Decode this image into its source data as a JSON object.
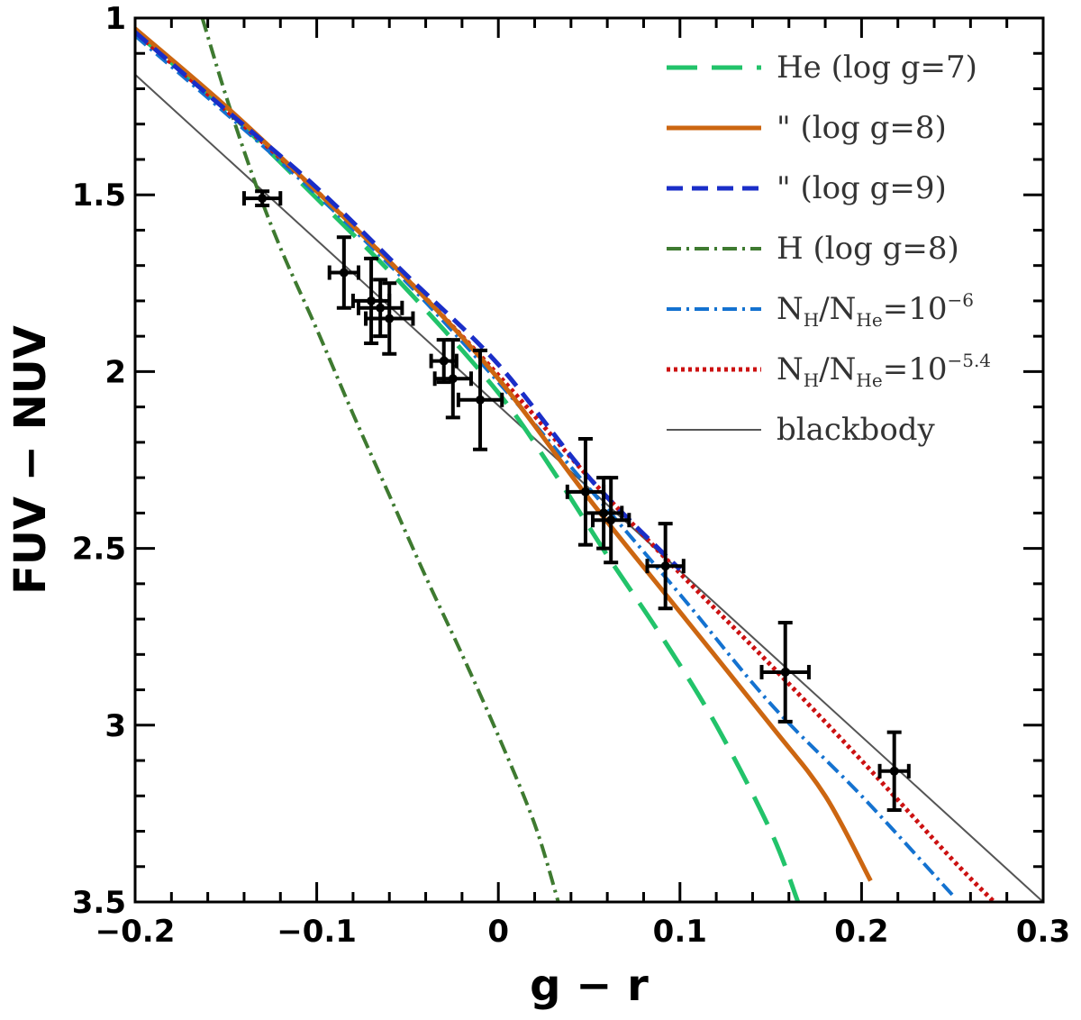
{
  "chart_data": {
    "type": "line",
    "xlabel": "g  −  r",
    "ylabel": "FUV  −  NUV",
    "xlim": [
      -0.2,
      0.3
    ],
    "ylim": [
      1.0,
      3.5
    ],
    "y_inverted": true,
    "x_ticks": [
      {
        "value": -0.2,
        "label": "−0.2"
      },
      {
        "value": -0.1,
        "label": "−0.1"
      },
      {
        "value": 0.0,
        "label": "0"
      },
      {
        "value": 0.1,
        "label": "0.1"
      },
      {
        "value": 0.2,
        "label": "0.2"
      },
      {
        "value": 0.3,
        "label": "0.3"
      }
    ],
    "y_ticks": [
      {
        "value": 1.0,
        "label": "1"
      },
      {
        "value": 1.5,
        "label": "1.5"
      },
      {
        "value": 2.0,
        "label": "2"
      },
      {
        "value": 2.5,
        "label": "2.5"
      },
      {
        "value": 3.0,
        "label": "3"
      },
      {
        "value": 3.5,
        "label": "3.5"
      }
    ],
    "legend_position": "top-right",
    "series": [
      {
        "id": "he7",
        "name": "He  (log g=7)",
        "color": "#22c36a",
        "style": "longdash",
        "x": [
          -0.2,
          -0.15,
          -0.1,
          -0.05,
          0.0,
          0.03,
          0.06,
          0.09,
          0.12,
          0.15,
          0.165
        ],
        "y": [
          1.04,
          1.26,
          1.51,
          1.77,
          2.06,
          2.28,
          2.52,
          2.75,
          3.0,
          3.3,
          3.5
        ]
      },
      {
        "id": "he8",
        "name": "\"  (log g=8)",
        "color": "#cc6611",
        "style": "solid",
        "x": [
          -0.2,
          -0.15,
          -0.1,
          -0.05,
          0.0,
          0.05,
          0.1,
          0.15,
          0.18,
          0.205
        ],
        "y": [
          1.03,
          1.25,
          1.49,
          1.74,
          2.02,
          2.36,
          2.68,
          3.0,
          3.2,
          3.44
        ]
      },
      {
        "id": "he9",
        "name": "\"  (log g=9)",
        "color": "#1a2ec8",
        "style": "dash",
        "x": [
          -0.2,
          -0.15,
          -0.1,
          -0.05,
          0.0,
          0.05,
          0.1
        ],
        "y": [
          1.04,
          1.26,
          1.48,
          1.73,
          1.98,
          2.3,
          2.56
        ]
      },
      {
        "id": "h8",
        "name": "H  (log g=8)",
        "color": "#3e7a30",
        "style": "dashdot",
        "x": [
          -0.163,
          -0.15,
          -0.135,
          -0.12,
          -0.1,
          -0.08,
          -0.06,
          -0.04,
          -0.02,
          0.0,
          0.02,
          0.033
        ],
        "y": [
          1.0,
          1.22,
          1.45,
          1.65,
          1.88,
          2.12,
          2.35,
          2.58,
          2.8,
          3.03,
          3.28,
          3.5
        ]
      },
      {
        "id": "nh6",
        "name": "N_H/N_He=10^-6",
        "color": "#1472d0",
        "style": "dashdot",
        "x": [
          -0.2,
          -0.15,
          -0.1,
          -0.05,
          0.0,
          0.05,
          0.1,
          0.15,
          0.2,
          0.25
        ],
        "y": [
          1.05,
          1.27,
          1.5,
          1.75,
          2.03,
          2.33,
          2.63,
          2.94,
          3.2,
          3.48
        ]
      },
      {
        "id": "nh54",
        "name": "N_H/N_He=10^-5.4",
        "color": "#cc1111",
        "style": "dotted",
        "x": [
          -0.2,
          -0.15,
          -0.1,
          -0.05,
          0.0,
          0.05,
          0.1,
          0.15,
          0.2,
          0.25,
          0.273
        ],
        "y": [
          1.04,
          1.26,
          1.49,
          1.74,
          2.01,
          2.3,
          2.57,
          2.83,
          3.1,
          3.38,
          3.5
        ]
      },
      {
        "id": "bb",
        "name": "blackbody",
        "color": "#555555",
        "style": "thin",
        "x": [
          -0.2,
          0.3
        ],
        "y": [
          1.16,
          3.5
        ]
      }
    ],
    "points": [
      {
        "x": -0.13,
        "y": 1.51,
        "xerr": 0.01,
        "yerr": 0.02
      },
      {
        "x": -0.085,
        "y": 1.72,
        "xerr": 0.008,
        "yerr": 0.1
      },
      {
        "x": -0.07,
        "y": 1.8,
        "xerr": 0.01,
        "yerr": 0.12
      },
      {
        "x": -0.065,
        "y": 1.82,
        "xerr": 0.012,
        "yerr": 0.08
      },
      {
        "x": -0.06,
        "y": 1.85,
        "xerr": 0.013,
        "yerr": 0.1
      },
      {
        "x": -0.03,
        "y": 1.97,
        "xerr": 0.007,
        "yerr": 0.06
      },
      {
        "x": -0.025,
        "y": 2.02,
        "xerr": 0.01,
        "yerr": 0.11
      },
      {
        "x": -0.01,
        "y": 2.08,
        "xerr": 0.012,
        "yerr": 0.14
      },
      {
        "x": 0.048,
        "y": 2.34,
        "xerr": 0.01,
        "yerr": 0.15
      },
      {
        "x": 0.058,
        "y": 2.4,
        "xerr": 0.01,
        "yerr": 0.1
      },
      {
        "x": 0.062,
        "y": 2.42,
        "xerr": 0.01,
        "yerr": 0.12
      },
      {
        "x": 0.092,
        "y": 2.55,
        "xerr": 0.01,
        "yerr": 0.12
      },
      {
        "x": 0.158,
        "y": 2.85,
        "xerr": 0.013,
        "yerr": 0.14
      },
      {
        "x": 0.218,
        "y": 3.13,
        "xerr": 0.008,
        "yerr": 0.11
      }
    ],
    "legend": [
      {
        "series": "he7",
        "label": "He  (log g=7)"
      },
      {
        "series": "he8",
        "label": "\"  (log g=8)"
      },
      {
        "series": "he9",
        "label": "\"  (log g=9)"
      },
      {
        "series": "h8",
        "label": "H  (log g=8)"
      },
      {
        "series": "nh6",
        "label": "N",
        "sub1": "H",
        "mid": "/N",
        "sub2": "He",
        "eq": "=10",
        "sup": "−6"
      },
      {
        "series": "nh54",
        "label": "N",
        "sub1": "H",
        "mid": "/N",
        "sub2": "He",
        "eq": "=10",
        "sup": "−5.4"
      },
      {
        "series": "bb",
        "label": "blackbody"
      }
    ]
  }
}
